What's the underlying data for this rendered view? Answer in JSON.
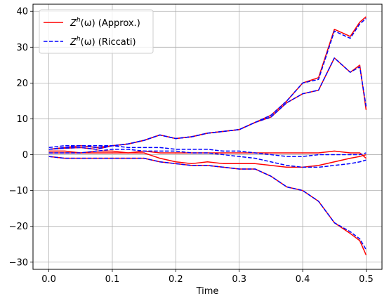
{
  "chart_data": {
    "type": "line",
    "title": "",
    "xlabel": "Time",
    "ylabel": "",
    "xlim": [
      -0.025,
      0.525
    ],
    "ylim": [
      -32,
      42
    ],
    "xticks": [
      0.0,
      0.1,
      0.2,
      0.3,
      0.4,
      0.5
    ],
    "xtick_labels": [
      "0.0",
      "0.1",
      "0.2",
      "0.3",
      "0.4",
      "0.5"
    ],
    "yticks": [
      -30,
      -20,
      -10,
      0,
      10,
      20,
      30,
      40
    ],
    "ytick_labels": [
      "−30",
      "−20",
      "−10",
      "0",
      "10",
      "20",
      "30",
      "40"
    ],
    "grid": true,
    "legend_position": "top-left",
    "colors": {
      "approx": "#ff0000",
      "riccati": "#0000ff",
      "grid": "#b0b0b0"
    },
    "legend": [
      {
        "label": "Z^h(ω) (Approx.)",
        "base": "Z",
        "sup": "h",
        "rest": "(ω) (Approx.)",
        "color": "#ff0000",
        "style": "solid"
      },
      {
        "label": "Z^h(ω) (Riccati)",
        "base": "Z",
        "sup": "h",
        "rest": "(ω) (Riccati)",
        "color": "#0000ff",
        "style": "dashed"
      }
    ],
    "x": [
      0.0,
      0.025,
      0.05,
      0.075,
      0.1,
      0.125,
      0.15,
      0.175,
      0.2,
      0.225,
      0.25,
      0.275,
      0.3,
      0.325,
      0.35,
      0.375,
      0.4,
      0.425,
      0.45,
      0.475,
      0.49,
      0.5
    ],
    "series": [
      {
        "group": "approx",
        "values": [
          1.5,
          2.0,
          2.5,
          2.0,
          2.5,
          3.0,
          4.0,
          5.5,
          4.5,
          5.0,
          6.0,
          6.5,
          7.0,
          9.0,
          11.0,
          15.0,
          20.0,
          21.5,
          35.0,
          33.0,
          37.0,
          38.5
        ]
      },
      {
        "group": "approx",
        "values": [
          1.5,
          1.8,
          2.0,
          1.5,
          2.5,
          3.0,
          4.0,
          5.5,
          4.5,
          5.0,
          6.0,
          6.5,
          7.0,
          9.0,
          10.5,
          14.5,
          17.0,
          18.0,
          27.0,
          23.0,
          25.0,
          12.5
        ]
      },
      {
        "group": "approx",
        "values": [
          1.0,
          1.0,
          0.5,
          1.0,
          1.0,
          0.5,
          1.0,
          0.5,
          0.5,
          0.5,
          0.5,
          0.5,
          0.5,
          0.5,
          0.5,
          0.5,
          0.5,
          0.5,
          1.0,
          0.5,
          0.5,
          -1.0
        ]
      },
      {
        "group": "approx",
        "values": [
          0.5,
          0.5,
          0.5,
          0.5,
          0.5,
          0.5,
          0.5,
          -1.0,
          -2.0,
          -2.5,
          -2.0,
          -2.5,
          -2.5,
          -2.5,
          -3.0,
          -3.5,
          -3.5,
          -3.0,
          -2.0,
          -1.0,
          -0.5,
          0.0
        ]
      },
      {
        "group": "approx",
        "values": [
          -0.5,
          -1.0,
          -1.0,
          -1.0,
          -1.0,
          -1.0,
          -1.0,
          -2.0,
          -2.5,
          -3.0,
          -3.0,
          -3.5,
          -4.0,
          -4.0,
          -6.0,
          -9.0,
          -10.0,
          -13.0,
          -19.0,
          -22.0,
          -24.0,
          -28.0
        ]
      },
      {
        "group": "riccati",
        "values": [
          1.5,
          2.0,
          2.5,
          2.0,
          2.5,
          3.0,
          4.0,
          5.5,
          4.5,
          5.0,
          6.0,
          6.5,
          7.0,
          9.0,
          11.0,
          15.0,
          20.0,
          21.0,
          34.5,
          32.5,
          36.5,
          38.0
        ]
      },
      {
        "group": "riccati",
        "values": [
          1.5,
          1.8,
          2.0,
          1.5,
          2.5,
          3.0,
          4.0,
          5.5,
          4.5,
          5.0,
          6.0,
          6.5,
          7.0,
          9.0,
          10.5,
          14.5,
          17.0,
          18.0,
          27.0,
          23.0,
          24.5,
          13.5
        ]
      },
      {
        "group": "riccati",
        "values": [
          2.0,
          2.5,
          2.5,
          2.5,
          2.5,
          2.0,
          2.0,
          2.0,
          1.5,
          1.5,
          1.5,
          1.0,
          1.0,
          0.5,
          0.0,
          -0.5,
          -0.5,
          0.0,
          0.0,
          0.0,
          0.0,
          0.5
        ]
      },
      {
        "group": "riccati",
        "values": [
          0.5,
          0.5,
          0.5,
          1.0,
          1.5,
          1.5,
          1.0,
          1.0,
          1.0,
          0.5,
          0.5,
          0.0,
          -0.5,
          -1.0,
          -2.0,
          -3.0,
          -3.5,
          -3.5,
          -3.0,
          -2.5,
          -2.0,
          -1.5
        ]
      },
      {
        "group": "riccati",
        "values": [
          -0.5,
          -1.0,
          -1.0,
          -1.0,
          -1.0,
          -1.0,
          -1.0,
          -2.0,
          -2.5,
          -3.0,
          -3.0,
          -3.5,
          -4.0,
          -4.0,
          -6.0,
          -9.0,
          -10.0,
          -13.0,
          -19.0,
          -21.5,
          -23.5,
          -26.5
        ]
      }
    ]
  }
}
